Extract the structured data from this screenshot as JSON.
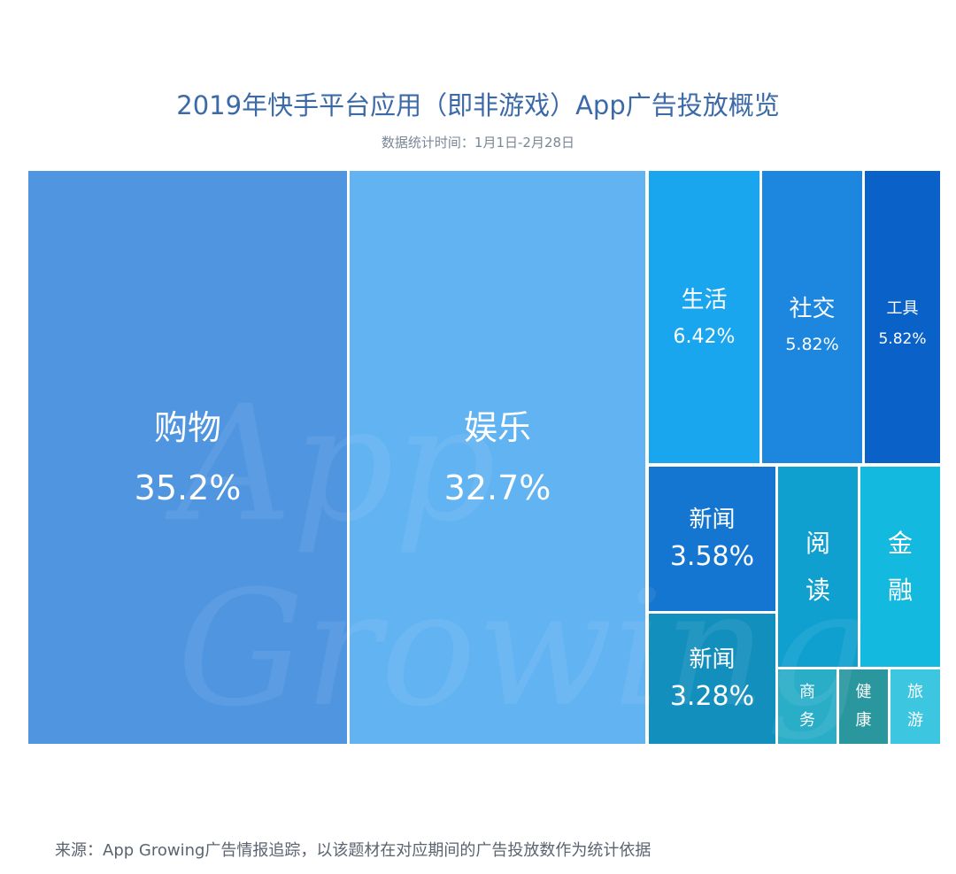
{
  "chart_data": {
    "type": "treemap",
    "title": "2019年快手平台应用（即非游戏）App广告投放概览",
    "subtitle": "数据统计时间：1月1日-2月28日",
    "tiles": [
      {
        "label": "购物",
        "value": "35.2%",
        "color": "#4f95e0"
      },
      {
        "label": "娱乐",
        "value": "32.7%",
        "color": "#62b3f2"
      },
      {
        "label": "生活",
        "value": "6.42%",
        "color": "#1aa6ee"
      },
      {
        "label": "社交",
        "value": "5.82%",
        "color": "#1d87e0"
      },
      {
        "label": "工具",
        "value": "5.82%",
        "color": "#0a62c9"
      },
      {
        "label": "新闻",
        "value": "3.58%",
        "color": "#1476d0"
      },
      {
        "label": "新闻",
        "value": "3.28%",
        "color": "#138fbd"
      },
      {
        "label": "阅读",
        "color": "#0fa0d0"
      },
      {
        "label": "金融",
        "color": "#14b9e0"
      },
      {
        "label": "商务",
        "color": "#2aaec8"
      },
      {
        "label": "健康",
        "color": "#2a979f"
      },
      {
        "label": "旅游",
        "color": "#3cc6e0"
      }
    ],
    "watermark": "App Growing"
  },
  "source": "来源：App Growing广告情报追踪，以该题材在对应期间的广告投放数作为统计依据"
}
